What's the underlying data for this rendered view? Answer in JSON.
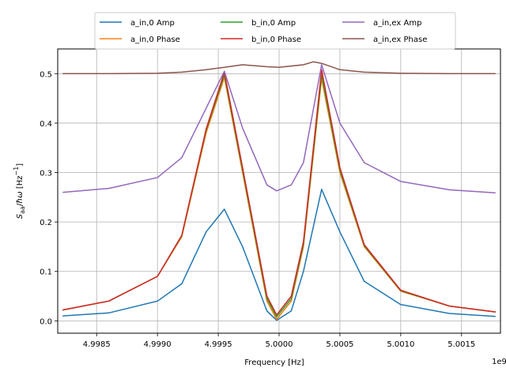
{
  "chart_data": {
    "type": "line",
    "xlabel": "Frequency [Hz]",
    "ylabel": "S_aa/ħω [Hz⁻¹]",
    "x_offset_label": "1e9",
    "xlim": [
      4998180000.0,
      5001820000.0
    ],
    "ylim": [
      -0.025,
      0.55
    ],
    "xticks": [
      4998500000.0,
      4999000000.0,
      4999500000.0,
      5000000000.0,
      5000500000.0,
      5001000000.0,
      5001500000.0
    ],
    "xtick_labels": [
      "4.9985",
      "4.9990",
      "4.9995",
      "5.0000",
      "5.0005",
      "5.0010",
      "5.0015"
    ],
    "yticks": [
      0.0,
      0.1,
      0.2,
      0.3,
      0.4,
      0.5
    ],
    "ytick_labels": [
      "0.0",
      "0.1",
      "0.2",
      "0.3",
      "0.4",
      "0.5"
    ],
    "grid": true,
    "legend_position": "top-center",
    "series": [
      {
        "name": "a_in,0 Amp",
        "color": "#1f77b4",
        "points": [
          [
            4998220000.0,
            0.01
          ],
          [
            4998600000.0,
            0.016
          ],
          [
            4999000000.0,
            0.04
          ],
          [
            4999200000.0,
            0.075
          ],
          [
            4999400000.0,
            0.18
          ],
          [
            4999550000.0,
            0.226
          ],
          [
            4999700000.0,
            0.15
          ],
          [
            4999900000.0,
            0.02
          ],
          [
            4999980000.0,
            0.001
          ],
          [
            5000100000.0,
            0.02
          ],
          [
            5000200000.0,
            0.1
          ],
          [
            5000350000.0,
            0.266
          ],
          [
            5000500000.0,
            0.18
          ],
          [
            5000700000.0,
            0.08
          ],
          [
            5001000000.0,
            0.033
          ],
          [
            5001400000.0,
            0.015
          ],
          [
            5001780000.0,
            0.009
          ]
        ]
      },
      {
        "name": "a_in,0 Phase",
        "color": "#ff7f0e",
        "points": [
          [
            4998220000.0,
            0.022
          ],
          [
            4998600000.0,
            0.04
          ],
          [
            4999000000.0,
            0.09
          ],
          [
            4999200000.0,
            0.17
          ],
          [
            4999400000.0,
            0.38
          ],
          [
            4999550000.0,
            0.492
          ],
          [
            4999700000.0,
            0.3
          ],
          [
            4999900000.0,
            0.04
          ],
          [
            4999980000.0,
            0.003
          ],
          [
            5000100000.0,
            0.04
          ],
          [
            5000200000.0,
            0.15
          ],
          [
            5000350000.0,
            0.49
          ],
          [
            5000500000.0,
            0.3
          ],
          [
            5000700000.0,
            0.15
          ],
          [
            5001000000.0,
            0.06
          ],
          [
            5001400000.0,
            0.03
          ],
          [
            5001780000.0,
            0.018
          ]
        ]
      },
      {
        "name": "b_in,0 Amp",
        "color": "#2ca02c",
        "points": [
          [
            4998220000.0,
            0.022
          ],
          [
            4998600000.0,
            0.04
          ],
          [
            4999000000.0,
            0.09
          ],
          [
            4999200000.0,
            0.172
          ],
          [
            4999400000.0,
            0.385
          ],
          [
            4999550000.0,
            0.498
          ],
          [
            4999700000.0,
            0.305
          ],
          [
            4999900000.0,
            0.045
          ],
          [
            4999980000.0,
            0.008
          ],
          [
            5000100000.0,
            0.045
          ],
          [
            5000200000.0,
            0.155
          ],
          [
            5000350000.0,
            0.498
          ],
          [
            5000500000.0,
            0.305
          ],
          [
            5000700000.0,
            0.152
          ],
          [
            5001000000.0,
            0.061
          ],
          [
            5001400000.0,
            0.03
          ],
          [
            5001780000.0,
            0.018
          ]
        ]
      },
      {
        "name": "b_in,0 Phase",
        "color": "#d62728",
        "points": [
          [
            4998220000.0,
            0.022
          ],
          [
            4998600000.0,
            0.04
          ],
          [
            4999000000.0,
            0.09
          ],
          [
            4999200000.0,
            0.173
          ],
          [
            4999400000.0,
            0.388
          ],
          [
            4999550000.0,
            0.503
          ],
          [
            4999700000.0,
            0.31
          ],
          [
            4999900000.0,
            0.05
          ],
          [
            4999980000.0,
            0.012
          ],
          [
            5000100000.0,
            0.05
          ],
          [
            5000200000.0,
            0.16
          ],
          [
            5000350000.0,
            0.508
          ],
          [
            5000500000.0,
            0.31
          ],
          [
            5000700000.0,
            0.154
          ],
          [
            5001000000.0,
            0.062
          ],
          [
            5001400000.0,
            0.03
          ],
          [
            5001780000.0,
            0.018
          ]
        ]
      },
      {
        "name": "a_in,ex Amp",
        "color": "#9467bd",
        "points": [
          [
            4998220000.0,
            0.26
          ],
          [
            4998600000.0,
            0.268
          ],
          [
            4999000000.0,
            0.29
          ],
          [
            4999200000.0,
            0.33
          ],
          [
            4999400000.0,
            0.43
          ],
          [
            4999550000.0,
            0.505
          ],
          [
            4999700000.0,
            0.39
          ],
          [
            4999900000.0,
            0.275
          ],
          [
            4999980000.0,
            0.263
          ],
          [
            5000100000.0,
            0.275
          ],
          [
            5000200000.0,
            0.32
          ],
          [
            5000350000.0,
            0.518
          ],
          [
            5000500000.0,
            0.4
          ],
          [
            5000700000.0,
            0.32
          ],
          [
            5001000000.0,
            0.282
          ],
          [
            5001400000.0,
            0.265
          ],
          [
            5001780000.0,
            0.259
          ]
        ]
      },
      {
        "name": "a_in,ex Phase",
        "color": "#8c564b",
        "points": [
          [
            4998220000.0,
            0.5
          ],
          [
            4998600000.0,
            0.5
          ],
          [
            4999000000.0,
            0.501
          ],
          [
            4999200000.0,
            0.503
          ],
          [
            4999400000.0,
            0.508
          ],
          [
            4999550000.0,
            0.513
          ],
          [
            4999700000.0,
            0.518
          ],
          [
            4999900000.0,
            0.514
          ],
          [
            5000000000.0,
            0.513
          ],
          [
            5000200000.0,
            0.518
          ],
          [
            5000280000.0,
            0.524
          ],
          [
            5000350000.0,
            0.521
          ],
          [
            5000500000.0,
            0.508
          ],
          [
            5000700000.0,
            0.503
          ],
          [
            5001000000.0,
            0.501
          ],
          [
            5001400000.0,
            0.5
          ],
          [
            5001780000.0,
            0.5
          ]
        ]
      }
    ]
  }
}
